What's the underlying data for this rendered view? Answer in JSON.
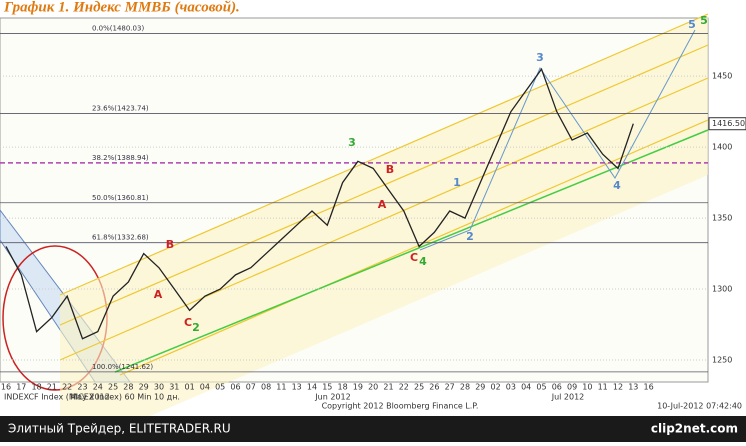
{
  "chart_data": {
    "type": "line",
    "title": "График 1.   Индекс ММВБ (часовой).",
    "categories": [
      "16",
      "17",
      "18",
      "21",
      "22",
      "23",
      "24",
      "25",
      "28",
      "29",
      "30",
      "31",
      "01",
      "04",
      "05",
      "06",
      "07",
      "08",
      "11",
      "13",
      "14",
      "15",
      "18",
      "19",
      "20",
      "21",
      "22",
      "25",
      "26",
      "27",
      "28",
      "29",
      "02",
      "03",
      "04",
      "05",
      "06",
      "09",
      "10",
      "11",
      "12",
      "13",
      "16"
    ],
    "months": [
      "May 2012",
      "Jun 2012",
      "Jul 2012"
    ],
    "series": [
      {
        "name": "INDEXCF Index",
        "color": "#222222",
        "values": [
          1330,
          1310,
          1270,
          1280,
          1295,
          1265,
          1270,
          1295,
          1305,
          1325,
          1315,
          1300,
          1285,
          1295,
          1300,
          1310,
          1315,
          1325,
          1335,
          1345,
          1355,
          1345,
          1375,
          1390,
          1385,
          1370,
          1355,
          1330,
          1340,
          1355,
          1350,
          1375,
          1400,
          1425,
          1440,
          1455,
          1425,
          1405,
          1410,
          1395,
          1385,
          1416.5,
          null
        ]
      }
    ],
    "last_price": {
      "value": 1416.5,
      "label": "1416.50"
    },
    "ylim": [
      1234.5,
      1491
    ],
    "yticks": [
      1250,
      1300,
      1350,
      1400,
      1450
    ],
    "fib_levels": [
      {
        "value": 1480.03,
        "label": "0.0%(1480.03)"
      },
      {
        "value": 1423.74,
        "label": "23.6%(1423.74)"
      },
      {
        "value": 1388.94,
        "label": "38.2%(1388.94)"
      },
      {
        "value": 1360.81,
        "label": "50.0%(1360.81)"
      },
      {
        "value": 1332.68,
        "label": "61.8%(1332.68)"
      },
      {
        "value": 1241.62,
        "label": "100.0%(1241.62)"
      }
    ],
    "annotations": [
      {
        "text": "A",
        "color": "#cc2222"
      },
      {
        "text": "B",
        "color": "#cc2222"
      },
      {
        "text": "C",
        "color": "#cc2222"
      },
      {
        "text": "2",
        "color": "#33aa33"
      },
      {
        "text": "3",
        "color": "#33aa33"
      },
      {
        "text": "B",
        "color": "#cc2222"
      },
      {
        "text": "A",
        "color": "#cc2222"
      },
      {
        "text": "C",
        "color": "#cc2222"
      },
      {
        "text": "4",
        "color": "#33aa33"
      },
      {
        "text": "1",
        "color": "#5588cc"
      },
      {
        "text": "2",
        "color": "#5588cc"
      },
      {
        "text": "3",
        "color": "#5588cc"
      },
      {
        "text": "4",
        "color": "#5588cc"
      },
      {
        "text": "5",
        "color": "#5588cc"
      },
      {
        "text": "5",
        "color": "#33aa33"
      }
    ],
    "footer_left": "INDEXCF Index (MICEX Index) 60 Min 10 дн.",
    "footer_center": "Copyright 2012 Bloomberg Finance L.P.",
    "footer_right": "10-Jul-2012 07:42:40",
    "banner_left": "Элитный Трейдер, ELITETRADER.RU",
    "banner_right": "clip2net.com"
  }
}
